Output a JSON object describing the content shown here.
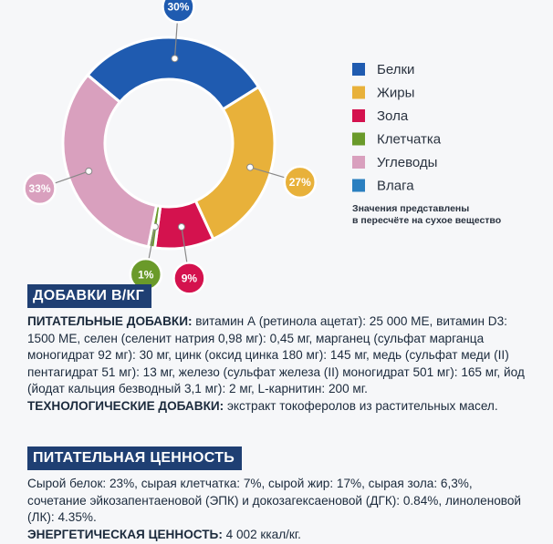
{
  "chart_data": {
    "type": "pie",
    "donut": true,
    "categories": [
      "Белки",
      "Жиры",
      "Зола",
      "Клетчатка",
      "Углеводы",
      "Влага"
    ],
    "values": [
      30,
      27,
      9,
      1,
      33,
      0
    ],
    "value_labels": [
      "30%",
      "27%",
      "9%",
      "1%",
      "33%",
      null
    ],
    "colors": [
      "#1f5bb0",
      "#e8b13a",
      "#d4124e",
      "#6a9a2a",
      "#d9a0be",
      "#2a7fc0"
    ],
    "notes": [
      "Значения представлены",
      "в пересчёте на сухое вещество"
    ]
  },
  "sections": [
    {
      "heading": "ДОБАВКИ В/КГ",
      "items": [
        {
          "label": "ПИТАТЕЛЬНЫЕ ДОБАВКИ:",
          "text": "витамин А (ретинола ацетат): 25 000 МЕ, витамин D3: 1500 МЕ, селен (селенит натрия 0,98 мг): 0,45 мг, марганец (сульфат марганца моногидрат 92 мг): 30 мг, цинк (оксид цинка 180 мг): 145 мг, медь (сульфат меди (II) пентагидрат 51 мг): 13 мг, железо (сульфат железа (II) моногидрат 501 мг): 165 мг, йод (йодат кальция безводный 3,1 мг): 2 мг, L-карнитин: 200 мг."
        },
        {
          "label": "ТЕХНОЛОГИЧЕСКИЕ ДОБАВКИ:",
          "text": "экстракт токоферолов из растительных масел."
        }
      ]
    },
    {
      "heading": "ПИТАТЕЛЬНАЯ ЦЕННОСТЬ",
      "items": [
        {
          "text": "Сырой белок: 23%, сырая клетчатка: 7%, сырой жир: 17%, сырая зола: 6,3%, сочетание эйкозапентаеновой (ЭПК) и докозагексаеновой (ДГК): 0.84%, линоленовой (ЛК): 4.35%."
        },
        {
          "label": "ЭНЕРГЕТИЧЕСКАЯ ЦЕННОСТЬ:",
          "text": "4 002 ккал/кг."
        }
      ]
    }
  ]
}
